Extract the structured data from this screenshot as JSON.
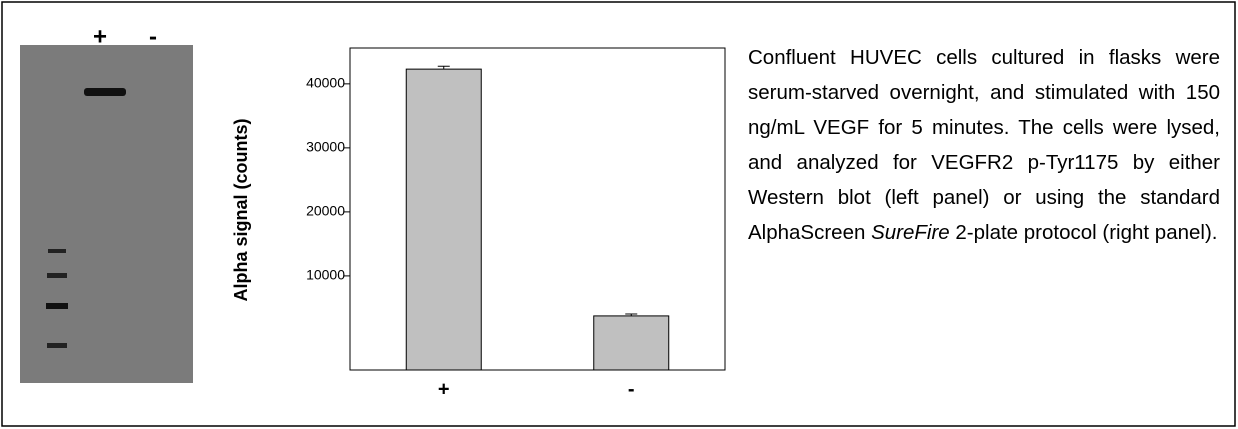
{
  "blot": {
    "lanes": [
      "+",
      "-"
    ]
  },
  "chart_data": {
    "type": "bar",
    "y_label": "Alpha signal (counts)",
    "categories": [
      "+",
      "-"
    ],
    "values": [
      42300,
      3750
    ],
    "errors": [
      450,
      300
    ],
    "color": "#c0c0c0",
    "ylim": [
      -4700,
      45600
    ],
    "yticks": [
      10000,
      20000,
      30000,
      40000
    ]
  },
  "caption": {
    "before": "Confluent HUVEC cells cultured in flasks were serum-starved overnight, and stimulated with 150 ng/mL VEGF for 5 minutes. The cells were lysed, and analyzed for VEGFR2 p-Tyr1175 by either Western blot (left panel) or using the standard AlphaScreen ",
    "italic": "SureFire",
    "after": " 2-plate protocol (right panel)."
  }
}
